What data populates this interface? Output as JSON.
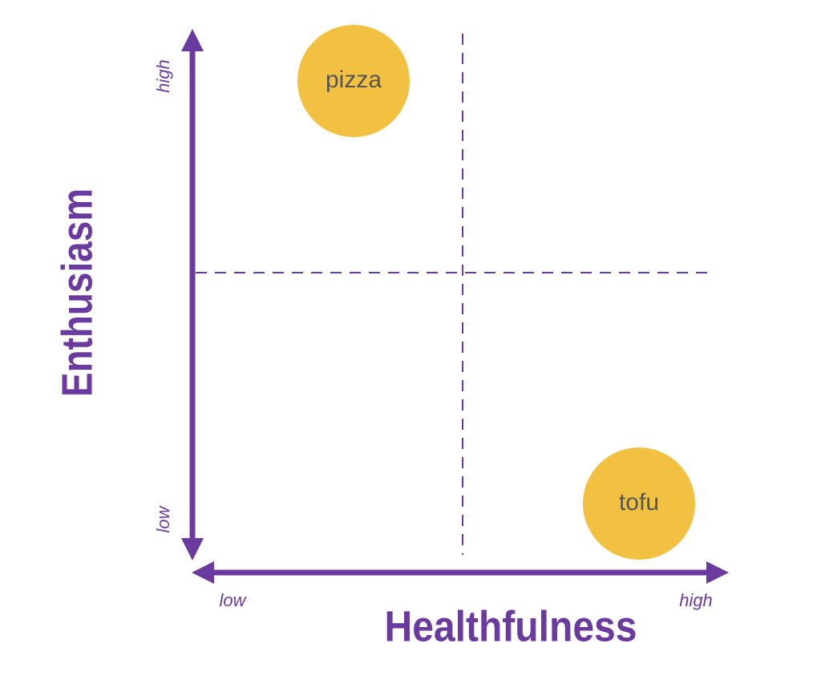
{
  "x_axis": {
    "title": "Healthfulness",
    "low": "low",
    "high": "high"
  },
  "y_axis": {
    "title": "Enthusiasm",
    "low": "low",
    "high": "high"
  },
  "nodes": [
    {
      "label": "pizza"
    },
    {
      "label": "tofu"
    }
  ]
}
